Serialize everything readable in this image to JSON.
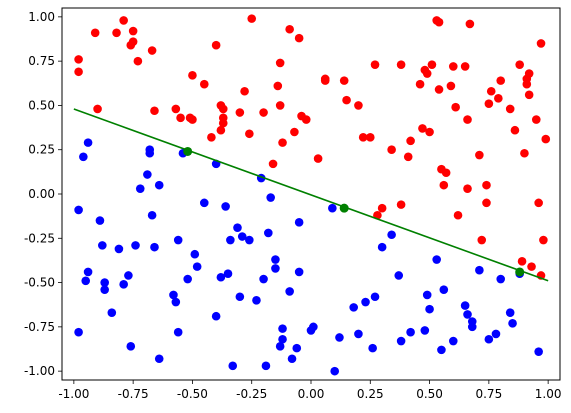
{
  "chart_data": {
    "type": "scatter",
    "title": "",
    "xlabel": "",
    "ylabel": "",
    "xlim": [
      -1.05,
      1.05
    ],
    "ylim": [
      -1.05,
      1.05
    ],
    "grid": false,
    "xticks": [
      "-1.00",
      "-0.75",
      "-0.50",
      "-0.25",
      "0.00",
      "0.25",
      "0.50",
      "0.75",
      "1.00"
    ],
    "xtick_values": [
      -1.0,
      -0.75,
      -0.5,
      -0.25,
      0.0,
      0.25,
      0.5,
      0.75,
      1.0
    ],
    "yticks": [
      "1.00",
      "0.75",
      "0.50",
      "0.25",
      "0.00",
      "-0.25",
      "-0.50",
      "-0.75",
      "-1.00"
    ],
    "ytick_values": [
      1.0,
      0.75,
      0.5,
      0.25,
      0.0,
      -0.25,
      -0.5,
      -0.75,
      -1.0
    ],
    "series": [
      {
        "color": "#ff0000",
        "points": [
          [
            -0.98,
            0.76
          ],
          [
            -0.98,
            0.69
          ],
          [
            -0.91,
            0.91
          ],
          [
            -0.9,
            0.48
          ],
          [
            -0.82,
            0.91
          ],
          [
            -0.79,
            0.98
          ],
          [
            -0.76,
            0.84
          ],
          [
            -0.75,
            0.86
          ],
          [
            -0.75,
            0.92
          ],
          [
            -0.73,
            0.75
          ],
          [
            -0.67,
            0.81
          ],
          [
            -0.66,
            0.47
          ],
          [
            -0.57,
            0.48
          ],
          [
            -0.55,
            0.43
          ],
          [
            -0.51,
            0.43
          ],
          [
            -0.5,
            0.67
          ],
          [
            -0.5,
            0.42
          ],
          [
            -0.45,
            0.62
          ],
          [
            -0.4,
            0.84
          ],
          [
            -0.38,
            0.5
          ],
          [
            -0.37,
            0.48
          ],
          [
            -0.37,
            0.43
          ],
          [
            -0.37,
            0.4
          ],
          [
            -0.42,
            0.32
          ],
          [
            -0.38,
            0.36
          ],
          [
            -0.3,
            0.46
          ],
          [
            -0.28,
            0.58
          ],
          [
            -0.26,
            0.34
          ],
          [
            -0.25,
            0.99
          ],
          [
            -0.2,
            0.46
          ],
          [
            -0.16,
            0.17
          ],
          [
            -0.14,
            0.61
          ],
          [
            -0.13,
            0.74
          ],
          [
            -0.13,
            0.5
          ],
          [
            -0.12,
            0.29
          ],
          [
            -0.09,
            0.93
          ],
          [
            -0.07,
            0.35
          ],
          [
            -0.05,
            0.88
          ],
          [
            -0.04,
            0.44
          ],
          [
            -0.02,
            0.42
          ],
          [
            0.03,
            0.2
          ],
          [
            0.06,
            0.64
          ],
          [
            0.06,
            0.65
          ],
          [
            0.14,
            0.64
          ],
          [
            0.15,
            0.53
          ],
          [
            0.2,
            0.5
          ],
          [
            0.22,
            0.32
          ],
          [
            0.25,
            0.32
          ],
          [
            0.27,
            0.73
          ],
          [
            0.28,
            -0.12
          ],
          [
            0.3,
            -0.08
          ],
          [
            0.34,
            0.25
          ],
          [
            0.38,
            0.73
          ],
          [
            0.38,
            -0.06
          ],
          [
            0.41,
            0.21
          ],
          [
            0.42,
            0.3
          ],
          [
            0.46,
            0.62
          ],
          [
            0.47,
            0.37
          ],
          [
            0.48,
            0.7
          ],
          [
            0.49,
            0.68
          ],
          [
            0.5,
            0.35
          ],
          [
            0.51,
            0.73
          ],
          [
            0.53,
            0.98
          ],
          [
            0.54,
            0.97
          ],
          [
            0.54,
            0.59
          ],
          [
            0.55,
            0.14
          ],
          [
            0.56,
            0.05
          ],
          [
            0.57,
            0.12
          ],
          [
            0.59,
            0.61
          ],
          [
            0.6,
            0.72
          ],
          [
            0.61,
            0.49
          ],
          [
            0.62,
            -0.12
          ],
          [
            0.65,
            0.72
          ],
          [
            0.66,
            0.42
          ],
          [
            0.66,
            0.03
          ],
          [
            0.67,
            0.96
          ],
          [
            0.71,
            0.22
          ],
          [
            0.72,
            -0.26
          ],
          [
            0.74,
            -0.05
          ],
          [
            0.74,
            0.05
          ],
          [
            0.75,
            0.51
          ],
          [
            0.76,
            0.58
          ],
          [
            0.79,
            0.54
          ],
          [
            0.8,
            0.64
          ],
          [
            0.84,
            0.48
          ],
          [
            0.86,
            0.36
          ],
          [
            0.88,
            0.73
          ],
          [
            0.89,
            -0.38
          ],
          [
            0.9,
            0.23
          ],
          [
            0.91,
            0.65
          ],
          [
            0.91,
            0.62
          ],
          [
            0.92,
            0.68
          ],
          [
            0.92,
            0.56
          ],
          [
            0.93,
            -0.41
          ],
          [
            0.95,
            0.42
          ],
          [
            0.97,
            0.85
          ],
          [
            0.97,
            -0.46
          ],
          [
            0.98,
            -0.26
          ],
          [
            0.99,
            0.31
          ],
          [
            0.96,
            -0.05
          ]
        ]
      },
      {
        "color": "#0000ff",
        "points": [
          [
            -0.98,
            -0.09
          ],
          [
            -0.98,
            -0.78
          ],
          [
            -0.96,
            0.21
          ],
          [
            -0.95,
            -0.49
          ],
          [
            -0.94,
            0.29
          ],
          [
            -0.94,
            -0.44
          ],
          [
            -0.89,
            -0.15
          ],
          [
            -0.88,
            -0.29
          ],
          [
            -0.87,
            -0.5
          ],
          [
            -0.87,
            -0.54
          ],
          [
            -0.84,
            -0.67
          ],
          [
            -0.81,
            -0.31
          ],
          [
            -0.79,
            -0.51
          ],
          [
            -0.77,
            -0.46
          ],
          [
            -0.76,
            -0.86
          ],
          [
            -0.74,
            -0.29
          ],
          [
            -0.72,
            0.03
          ],
          [
            -0.69,
            0.11
          ],
          [
            -0.68,
            0.25
          ],
          [
            -0.68,
            0.23
          ],
          [
            -0.67,
            -0.12
          ],
          [
            -0.66,
            -0.3
          ],
          [
            -0.64,
            -0.93
          ],
          [
            -0.64,
            0.05
          ],
          [
            -0.58,
            -0.57
          ],
          [
            -0.57,
            -0.61
          ],
          [
            -0.56,
            -0.78
          ],
          [
            -0.56,
            -0.26
          ],
          [
            -0.54,
            0.23
          ],
          [
            -0.52,
            -0.48
          ],
          [
            -0.49,
            -0.34
          ],
          [
            -0.48,
            -0.41
          ],
          [
            -0.45,
            -0.05
          ],
          [
            -0.4,
            0.17
          ],
          [
            -0.4,
            -0.69
          ],
          [
            -0.38,
            -0.47
          ],
          [
            -0.36,
            -0.07
          ],
          [
            -0.35,
            -0.45
          ],
          [
            -0.34,
            -0.26
          ],
          [
            -0.33,
            -0.97
          ],
          [
            -0.31,
            -0.19
          ],
          [
            -0.3,
            -0.58
          ],
          [
            -0.29,
            -0.24
          ],
          [
            -0.26,
            -0.26
          ],
          [
            -0.23,
            -0.6
          ],
          [
            -0.21,
            0.09
          ],
          [
            -0.2,
            -0.48
          ],
          [
            -0.19,
            -0.97
          ],
          [
            -0.18,
            -0.22
          ],
          [
            -0.17,
            -0.02
          ],
          [
            -0.15,
            -0.37
          ],
          [
            -0.15,
            -0.42
          ],
          [
            -0.13,
            -0.86
          ],
          [
            -0.12,
            -0.76
          ],
          [
            -0.12,
            -0.82
          ],
          [
            -0.09,
            -0.55
          ],
          [
            -0.08,
            -0.93
          ],
          [
            -0.06,
            -0.87
          ],
          [
            -0.05,
            -0.44
          ],
          [
            -0.05,
            -0.16
          ],
          [
            0.0,
            -0.77
          ],
          [
            0.01,
            -0.75
          ],
          [
            0.09,
            -0.08
          ],
          [
            0.1,
            -1.0
          ],
          [
            0.12,
            -0.81
          ],
          [
            0.18,
            -0.64
          ],
          [
            0.2,
            -0.79
          ],
          [
            0.23,
            -0.61
          ],
          [
            0.26,
            -0.87
          ],
          [
            0.27,
            -0.58
          ],
          [
            0.3,
            -0.3
          ],
          [
            0.34,
            -0.23
          ],
          [
            0.37,
            -0.46
          ],
          [
            0.38,
            -0.83
          ],
          [
            0.42,
            -0.78
          ],
          [
            0.48,
            -0.77
          ],
          [
            0.49,
            -0.57
          ],
          [
            0.5,
            -0.65
          ],
          [
            0.53,
            -0.37
          ],
          [
            0.55,
            -0.88
          ],
          [
            0.56,
            -0.54
          ],
          [
            0.6,
            -0.83
          ],
          [
            0.65,
            -0.63
          ],
          [
            0.66,
            -0.68
          ],
          [
            0.68,
            -0.72
          ],
          [
            0.68,
            -0.75
          ],
          [
            0.71,
            -0.43
          ],
          [
            0.75,
            -0.82
          ],
          [
            0.78,
            -0.79
          ],
          [
            0.8,
            -0.48
          ],
          [
            0.84,
            -0.67
          ],
          [
            0.85,
            -0.73
          ],
          [
            0.88,
            -0.45
          ],
          [
            0.96,
            -0.89
          ]
        ]
      },
      {
        "color": "#008000",
        "points": [
          [
            -0.52,
            0.24
          ],
          [
            0.14,
            -0.08
          ],
          [
            0.88,
            -0.44
          ]
        ]
      }
    ],
    "line": {
      "color": "#008000",
      "points": [
        [
          -1.0,
          0.48
        ],
        [
          1.0,
          -0.49
        ]
      ]
    }
  }
}
